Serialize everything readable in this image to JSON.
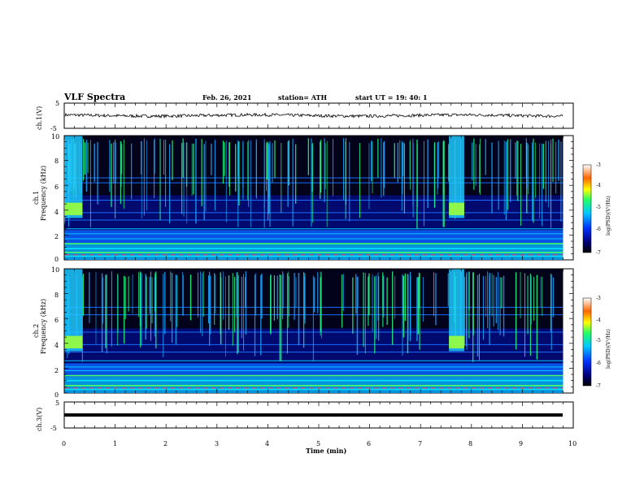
{
  "header": {
    "title": "VLF Spectra",
    "date": "Feb. 26, 2021",
    "station": "station= ATH",
    "start": "start  UT  =   19: 40: 1"
  },
  "chart_data": [
    {
      "id": "ch1-waveform",
      "type": "line",
      "ylabel": "ch.1(V)",
      "ylim": [
        -5,
        5
      ],
      "yticks": [
        "5",
        "-5"
      ],
      "xlim": [
        0,
        10
      ],
      "trace": "noise waveform near 0 V (approx. -0.3 to +0.5 V)"
    },
    {
      "id": "ch1-spectrogram",
      "type": "heatmap",
      "ylabel": "ch.1",
      "ylabel2": "Frequency (kHz)",
      "ylim": [
        0,
        10
      ],
      "yticks": [
        "0",
        "2",
        "4",
        "6",
        "8",
        "10"
      ],
      "xlim": [
        0,
        9.8
      ],
      "colorbar": {
        "label": "log(PSD)(V²/Hz)",
        "range": [
          -7,
          -3
        ],
        "ticks": [
          "-3",
          "-4",
          "-5",
          "-6",
          "-7"
        ]
      },
      "broadband_intervals_min": [
        [
          0,
          0.35
        ],
        [
          7.55,
          7.85
        ]
      ],
      "band_freqs_khz": [
        0.3,
        0.6,
        0.9,
        1.3,
        1.7,
        2.1,
        2.5,
        3.2,
        3.8,
        4.8,
        6.2,
        6.6
      ]
    },
    {
      "id": "ch2-spectrogram",
      "type": "heatmap",
      "ylabel": "ch.2",
      "ylabel2": "Frequency (kHz)",
      "ylim": [
        0,
        10
      ],
      "yticks": [
        "0",
        "2",
        "4",
        "6",
        "8",
        "10"
      ],
      "xlim": [
        0,
        9.8
      ],
      "colorbar": {
        "label": "log(PSD)(V²/Hz)",
        "range": [
          -7,
          -3
        ],
        "ticks": [
          "-3",
          "-4",
          "-5",
          "-6",
          "-7"
        ]
      },
      "broadband_intervals_min": [
        [
          0,
          0.35
        ],
        [
          7.55,
          7.85
        ]
      ],
      "band_freqs_khz": [
        0.3,
        0.6,
        1.0,
        1.4,
        1.8,
        2.1,
        2.6,
        3.3,
        3.9,
        4.9,
        6.3,
        6.9
      ]
    },
    {
      "id": "ch3-waveform",
      "type": "line",
      "ylabel": "ch.3(V)",
      "ylim": [
        -5,
        5
      ],
      "yticks": [
        "5",
        "-5"
      ],
      "xlim": [
        0,
        10
      ],
      "xlabel": "Time (min)",
      "xticks": [
        "0",
        "1",
        "2",
        "3",
        "4",
        "5",
        "6",
        "7",
        "8",
        "9",
        "10"
      ],
      "trace": "constant level near 0 V"
    }
  ]
}
